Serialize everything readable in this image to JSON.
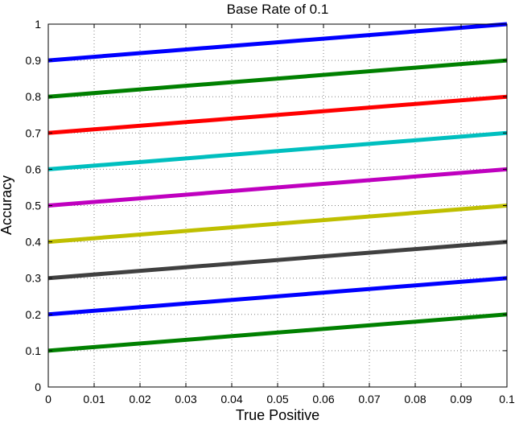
{
  "chart_data": {
    "type": "line",
    "title": "Base Rate of 0.1",
    "xlabel": "True Positive",
    "ylabel": "Accuracy",
    "xlim": [
      0,
      0.1
    ],
    "ylim": [
      0,
      1
    ],
    "grid": true,
    "legend": "none",
    "x": [
      0,
      0.1
    ],
    "x_ticks": [
      "0",
      "0.01",
      "0.02",
      "0.03",
      "0.04",
      "0.05",
      "0.06",
      "0.07",
      "0.08",
      "0.09",
      "0.1"
    ],
    "y_ticks": [
      "0",
      "0.1",
      "0.2",
      "0.3",
      "0.4",
      "0.5",
      "0.6",
      "0.7",
      "0.8",
      "0.9",
      "1"
    ],
    "series": [
      {
        "color": "#0000ff",
        "values": [
          0.9,
          1.0
        ]
      },
      {
        "color": "#008000",
        "values": [
          0.8,
          0.9
        ]
      },
      {
        "color": "#ff0000",
        "values": [
          0.7,
          0.8
        ]
      },
      {
        "color": "#00bfbf",
        "values": [
          0.6,
          0.7
        ]
      },
      {
        "color": "#bf00bf",
        "values": [
          0.5,
          0.6
        ]
      },
      {
        "color": "#bfbf00",
        "values": [
          0.4,
          0.5
        ]
      },
      {
        "color": "#404040",
        "values": [
          0.3,
          0.4
        ]
      },
      {
        "color": "#0000ff",
        "values": [
          0.2,
          0.3
        ]
      },
      {
        "color": "#008000",
        "values": [
          0.1,
          0.2
        ]
      }
    ]
  }
}
